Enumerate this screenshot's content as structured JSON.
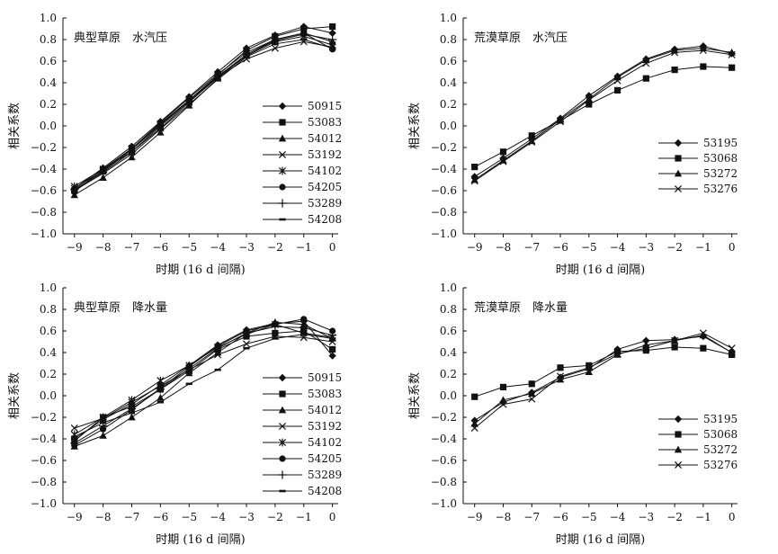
{
  "figure": {
    "x_axis_label": "时期 (16 d 间隔)",
    "y_axis_label": "相关系数"
  },
  "chart_data": [
    {
      "type": "line",
      "title": "典型草原　水汽压",
      "xlabel": "时期 (16 d 间隔)",
      "ylabel": "相关系数",
      "x": [
        -9,
        -8,
        -7,
        -6,
        -5,
        -4,
        -3,
        -2,
        -1,
        0
      ],
      "xlim": [
        -9.4,
        0.2
      ],
      "ylim": [
        -1.0,
        1.0
      ],
      "yticks": [
        "1.0",
        "0.8",
        "0.6",
        "0.4",
        "0.2",
        "0.0",
        "−0.2",
        "−0.4",
        "−0.6",
        "−0.8",
        "−1.0"
      ],
      "xticks": [
        "−9",
        "−8",
        "−7",
        "−6",
        "−5",
        "−4",
        "−3",
        "−2",
        "−1",
        "0"
      ],
      "series": [
        {
          "name": "50915",
          "marker": "diamond",
          "values": [
            -0.58,
            -0.39,
            -0.19,
            0.04,
            0.27,
            0.5,
            0.72,
            0.84,
            0.92,
            0.86
          ]
        },
        {
          "name": "53083",
          "marker": "square",
          "values": [
            -0.6,
            -0.42,
            -0.22,
            0.01,
            0.24,
            0.47,
            0.7,
            0.83,
            0.9,
            0.92
          ]
        },
        {
          "name": "54012",
          "marker": "triangle",
          "values": [
            -0.64,
            -0.48,
            -0.29,
            -0.06,
            0.19,
            0.44,
            0.66,
            0.8,
            0.86,
            0.78
          ]
        },
        {
          "name": "53192",
          "marker": "x",
          "values": [
            -0.58,
            -0.41,
            -0.21,
            0.02,
            0.24,
            0.45,
            0.62,
            0.72,
            0.78,
            0.73
          ]
        },
        {
          "name": "54102",
          "marker": "star",
          "values": [
            -0.56,
            -0.4,
            -0.24,
            -0.02,
            0.22,
            0.45,
            0.65,
            0.78,
            0.83,
            0.75
          ]
        },
        {
          "name": "54205",
          "marker": "circle",
          "values": [
            -0.61,
            -0.4,
            -0.21,
            0.03,
            0.26,
            0.48,
            0.68,
            0.8,
            0.86,
            0.71
          ]
        },
        {
          "name": "53289",
          "marker": "plus",
          "values": [
            -0.59,
            -0.43,
            -0.24,
            0.0,
            0.23,
            0.46,
            0.66,
            0.79,
            0.85,
            0.8
          ]
        },
        {
          "name": "54208",
          "marker": "dash",
          "values": [
            -0.6,
            -0.44,
            -0.26,
            -0.03,
            0.2,
            0.43,
            0.64,
            0.76,
            0.8,
            0.72
          ]
        }
      ]
    },
    {
      "type": "line",
      "title": "荒漠草原　水汽压",
      "xlabel": "时期 (16 d 间隔)",
      "ylabel": "相关系数",
      "x": [
        -9,
        -8,
        -7,
        -6,
        -5,
        -4,
        -3,
        -2,
        -1,
        0
      ],
      "xlim": [
        -9.4,
        0.2
      ],
      "ylim": [
        -1.0,
        1.0
      ],
      "yticks": [
        "1.0",
        "0.8",
        "0.6",
        "0.4",
        "0.2",
        "0.0",
        "−0.2",
        "−0.4",
        "−0.6",
        "−0.8",
        "−1.0"
      ],
      "xticks": [
        "−9",
        "−8",
        "−7",
        "−6",
        "−5",
        "−4",
        "−3",
        "−2",
        "−1",
        "0"
      ],
      "series": [
        {
          "name": "53195",
          "marker": "diamond",
          "values": [
            -0.47,
            -0.3,
            -0.12,
            0.07,
            0.28,
            0.46,
            0.62,
            0.71,
            0.74,
            0.67
          ]
        },
        {
          "name": "53068",
          "marker": "square",
          "values": [
            -0.38,
            -0.24,
            -0.09,
            0.05,
            0.2,
            0.33,
            0.44,
            0.52,
            0.55,
            0.54
          ]
        },
        {
          "name": "53272",
          "marker": "triangle",
          "values": [
            -0.5,
            -0.32,
            -0.14,
            0.06,
            0.25,
            0.45,
            0.61,
            0.7,
            0.72,
            0.68
          ]
        },
        {
          "name": "53276",
          "marker": "x",
          "values": [
            -0.51,
            -0.33,
            -0.15,
            0.04,
            0.24,
            0.42,
            0.58,
            0.68,
            0.7,
            0.66
          ]
        }
      ]
    },
    {
      "type": "line",
      "title": "典型草原　降水量",
      "xlabel": "时期 (16 d 间隔)",
      "ylabel": "相关系数",
      "x": [
        -9,
        -8,
        -7,
        -6,
        -5,
        -4,
        -3,
        -2,
        -1,
        0
      ],
      "xlim": [
        -9.4,
        0.2
      ],
      "ylim": [
        -1.0,
        1.0
      ],
      "yticks": [
        "1.0",
        "0.8",
        "0.6",
        "0.4",
        "0.2",
        "0.0",
        "−0.2",
        "−0.4",
        "−0.6",
        "−0.8",
        "−1.0"
      ],
      "xticks": [
        "−9",
        "−8",
        "−7",
        "−6",
        "−5",
        "−4",
        "−3",
        "−2",
        "−1",
        "0"
      ],
      "series": [
        {
          "name": "50915",
          "marker": "diamond",
          "values": [
            -0.4,
            -0.22,
            -0.08,
            0.1,
            0.28,
            0.47,
            0.61,
            0.67,
            0.69,
            0.37
          ]
        },
        {
          "name": "53083",
          "marker": "square",
          "values": [
            -0.42,
            -0.2,
            -0.1,
            0.06,
            0.23,
            0.43,
            0.55,
            0.58,
            0.6,
            0.43
          ]
        },
        {
          "name": "54012",
          "marker": "triangle",
          "values": [
            -0.47,
            -0.37,
            -0.2,
            -0.02,
            0.21,
            0.4,
            0.58,
            0.68,
            0.66,
            0.53
          ]
        },
        {
          "name": "53192",
          "marker": "x",
          "values": [
            -0.3,
            -0.21,
            -0.06,
            0.09,
            0.24,
            0.38,
            0.48,
            0.55,
            0.54,
            0.5
          ]
        },
        {
          "name": "54102",
          "marker": "star",
          "values": [
            -0.36,
            -0.2,
            -0.04,
            0.14,
            0.28,
            0.45,
            0.57,
            0.66,
            0.58,
            0.54
          ]
        },
        {
          "name": "54205",
          "marker": "circle",
          "values": [
            -0.46,
            -0.31,
            -0.13,
            0.07,
            0.27,
            0.46,
            0.6,
            0.66,
            0.71,
            0.6
          ]
        },
        {
          "name": "53289",
          "marker": "plus",
          "values": [
            -0.44,
            -0.28,
            -0.12,
            0.06,
            0.25,
            0.44,
            0.58,
            0.64,
            0.63,
            0.56
          ]
        },
        {
          "name": "54208",
          "marker": "dash",
          "values": [
            -0.38,
            -0.25,
            -0.16,
            -0.06,
            0.11,
            0.24,
            0.44,
            0.53,
            0.57,
            0.53
          ]
        }
      ]
    },
    {
      "type": "line",
      "title": "荒漠草原　降水量",
      "xlabel": "时期 (16 d 间隔)",
      "ylabel": "相关系数",
      "x": [
        -9,
        -8,
        -7,
        -6,
        -5,
        -4,
        -3,
        -2,
        -1,
        0
      ],
      "xlim": [
        -9.4,
        0.2
      ],
      "ylim": [
        -1.0,
        1.0
      ],
      "yticks": [
        "1.0",
        "0.8",
        "0.6",
        "0.4",
        "0.2",
        "0.0",
        "−0.2",
        "−0.4",
        "−0.6",
        "−0.8",
        "−1.0"
      ],
      "xticks": [
        "−9",
        "−8",
        "−7",
        "−6",
        "−5",
        "−4",
        "−3",
        "−2",
        "−1",
        "0"
      ],
      "series": [
        {
          "name": "53195",
          "marker": "diamond",
          "values": [
            -0.23,
            -0.06,
            0.03,
            0.17,
            0.25,
            0.43,
            0.51,
            0.52,
            0.55,
            0.4
          ]
        },
        {
          "name": "53068",
          "marker": "square",
          "values": [
            -0.01,
            0.08,
            0.11,
            0.26,
            0.28,
            0.41,
            0.42,
            0.45,
            0.44,
            0.38
          ]
        },
        {
          "name": "53272",
          "marker": "triangle",
          "values": [
            -0.26,
            -0.04,
            0.02,
            0.15,
            0.22,
            0.38,
            0.47,
            0.51,
            0.56,
            0.4
          ]
        },
        {
          "name": "53276",
          "marker": "x",
          "values": [
            -0.3,
            -0.08,
            -0.03,
            0.18,
            0.26,
            0.39,
            0.44,
            0.51,
            0.58,
            0.44
          ]
        }
      ]
    }
  ]
}
